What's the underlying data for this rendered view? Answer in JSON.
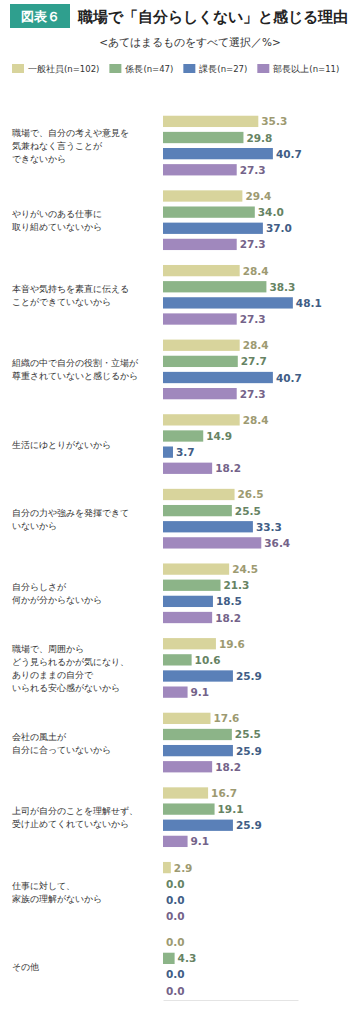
{
  "chart_data": {
    "type": "bar",
    "orientation": "horizontal",
    "annotations": [
      "図表６"
    ],
    "title": "職場で「自分らしくない」と感じる理由",
    "subtitle": "<あてはまるものをすべて選択／%>",
    "categories": [
      "職場で、自分の考えや意見を\n気兼ねなく言うことが\nできないから",
      "やりがいのある仕事に\n取り組めていないから",
      "本音や気持ちを素直に伝える\nことができていないから",
      "組織の中で自分の役割・立場が\n尊重されていないと感じるから",
      "生活にゆとりがないから",
      "自分の力や強みを発揮できて\nいないから",
      "自分らしさが\n何かが分からないから",
      "職場で、周囲から\nどう見られるかが気になり、\nありのままの自分で\nいられる安心感がないから",
      "会社の風土が\n自分に合っていないから",
      "上司が自分のことを理解せず、\n受け止めてくれていないから",
      "仕事に対して、\n家族の理解がないから",
      "その他"
    ],
    "series": [
      {
        "name": "一般社員(n=102)",
        "color": "#d8d49c",
        "values": [
          35.3,
          29.4,
          28.4,
          28.4,
          28.4,
          26.5,
          24.5,
          19.6,
          17.6,
          16.7,
          2.9,
          0.0
        ],
        "value_labels": [
          "35.3",
          "29.4",
          "28.4",
          "28.4",
          "28.4",
          "26.5",
          "24.5",
          "19.6",
          "17.6",
          "16.7",
          "2.9",
          "0.0"
        ]
      },
      {
        "name": "係長(n=47)",
        "color": "#8cb488",
        "values": [
          29.8,
          34.0,
          38.3,
          27.7,
          14.9,
          25.5,
          21.3,
          10.6,
          25.5,
          19.1,
          0.0,
          4.3
        ],
        "value_labels": [
          "29.8",
          "34.0",
          "38.3",
          "27.7",
          "14.9",
          "25.5",
          "21.3",
          "10.6",
          "25.5",
          "19.1",
          "0.0",
          "4.3"
        ]
      },
      {
        "name": "課長(n=27)",
        "color": "#5a80b8",
        "values": [
          40.7,
          37.0,
          48.1,
          40.7,
          3.7,
          33.3,
          18.5,
          25.9,
          25.9,
          25.9,
          0.0,
          0.0
        ],
        "value_labels": [
          "40.7",
          "37.0",
          "48.1",
          "40.7",
          "3.7",
          "33.3",
          "18.5",
          "25.9",
          "25.9",
          "25.9",
          "0.0",
          "0.0"
        ]
      },
      {
        "name": "部長以上(n=11)",
        "color": "#a088bd",
        "values": [
          27.3,
          27.3,
          27.3,
          27.3,
          18.2,
          36.4,
          18.2,
          9.1,
          18.2,
          9.1,
          0.0,
          0.0
        ],
        "value_labels": [
          "27.3",
          "27.3",
          "27.3",
          "27.3",
          "18.2",
          "36.4",
          "18.2",
          "9.1",
          "18.2",
          "9.1",
          "0.0",
          "0.0"
        ]
      }
    ],
    "xlim": [
      0,
      50
    ],
    "xticks": [],
    "tick_labels": false,
    "grid": false,
    "legend": "top-left",
    "data_labels": true
  }
}
